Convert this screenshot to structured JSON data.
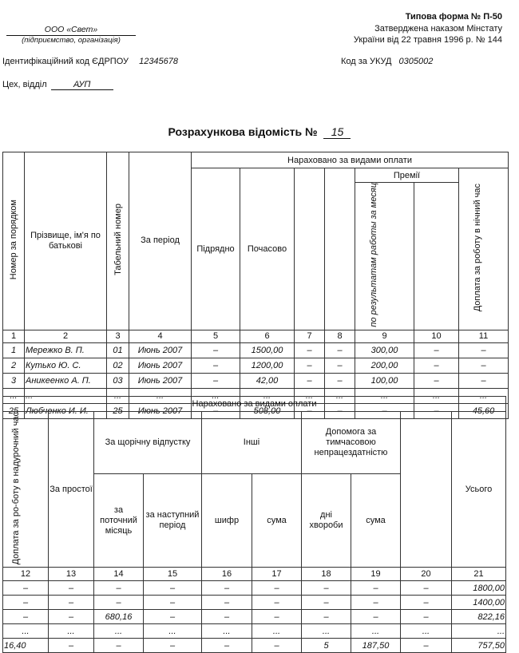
{
  "header": {
    "form_title": "Типова форма № П-50",
    "approved_line1": "Затверджена наказом Мінстату",
    "approved_line2": "України від 22 травня 1996 р. № 144",
    "org_name": "ООО «Свет»",
    "org_caption": "(підприємство, організація)",
    "edrpou_label": "Ідентифікаційний код ЄДРПОУ",
    "edrpou_value": "12345678",
    "ukud_label": "Код за УКУД",
    "ukud_value": "0305002",
    "dept_label": "Цех, відділ",
    "dept_value": "АУП",
    "sheet_title": "Розрахункова відомість №",
    "sheet_number": "15"
  },
  "table1": {
    "group_header": "Нараховано за видами оплати",
    "bonus_header": "Премії",
    "col_headers": {
      "c1": "Номер за порядком",
      "c2": "Прізвище, ім'я по батькові",
      "c3": "Табельний номер",
      "c4": "За період",
      "c5": "Підрядно",
      "c6": "Почасово",
      "c9": "по результатам работы за месяц",
      "c11": "Доплата за роботу в нічний час"
    },
    "col_numbers": [
      "1",
      "2",
      "3",
      "4",
      "5",
      "6",
      "7",
      "8",
      "9",
      "10",
      "11"
    ],
    "rows": [
      [
        "1",
        "Мережко В. П.",
        "01",
        "Июнь 2007",
        "–",
        "1500,00",
        "–",
        "–",
        "300,00",
        "–",
        "–"
      ],
      [
        "2",
        "Кутько Ю. С.",
        "02",
        "Июнь 2007",
        "–",
        "1200,00",
        "–",
        "–",
        "200,00",
        "–",
        "–"
      ],
      [
        "3",
        "Аникеенко А. П.",
        "03",
        "Июнь 2007",
        "–",
        "42,00",
        "–",
        "–",
        "100,00",
        "–",
        "–"
      ],
      [
        "...",
        "...",
        "...",
        "...",
        "...",
        "...",
        "...",
        "...",
        "...",
        "...",
        "..."
      ],
      [
        "25",
        "Любченко И. И.",
        "25",
        "Июнь 2007",
        "–",
        "508,00",
        "–",
        "–",
        "–",
        "–",
        "45,60"
      ]
    ]
  },
  "table2": {
    "group_header": "Нараховано за видами оплати",
    "col_headers": {
      "c12": "Доплата за ро-боту в надурочний час",
      "c13": "За простої",
      "vacation": "За щорічну відпустку",
      "c14": "за поточний місяць",
      "c15": "за наступний період",
      "other": "Інші",
      "c16": "шифр",
      "c17": "сума",
      "sick": "Допомога за тимчасовою непрацездатністю",
      "c18": "дні хвороби",
      "c19": "сума",
      "c21": "Усього"
    },
    "col_numbers": [
      "12",
      "13",
      "14",
      "15",
      "16",
      "17",
      "18",
      "19",
      "20",
      "21"
    ],
    "rows": [
      [
        "–",
        "–",
        "–",
        "–",
        "–",
        "–",
        "–",
        "–",
        "–",
        "1800,00"
      ],
      [
        "–",
        "–",
        "–",
        "–",
        "–",
        "–",
        "–",
        "–",
        "–",
        "1400,00"
      ],
      [
        "–",
        "–",
        "680,16",
        "–",
        "–",
        "–",
        "–",
        "–",
        "–",
        "822,16"
      ],
      [
        "...",
        "...",
        "...",
        "...",
        "...",
        "...",
        "...",
        "...",
        "...",
        "..."
      ],
      [
        "16,40",
        "–",
        "–",
        "–",
        "–",
        "–",
        "5",
        "187,50",
        "–",
        "757,50"
      ]
    ]
  }
}
